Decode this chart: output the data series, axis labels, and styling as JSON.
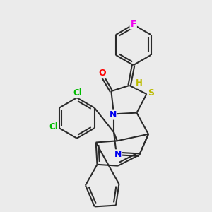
{
  "background_color": "#ebebeb",
  "bond_color": "#2a2a2a",
  "atom_colors": {
    "F": "#ee00ee",
    "Cl": "#00bb00",
    "O": "#ff0000",
    "N": "#0000ee",
    "S": "#bbbb00",
    "H": "#bbbb00",
    "C": "#2a2a2a"
  },
  "lw": 1.5,
  "dbo": 0.048
}
